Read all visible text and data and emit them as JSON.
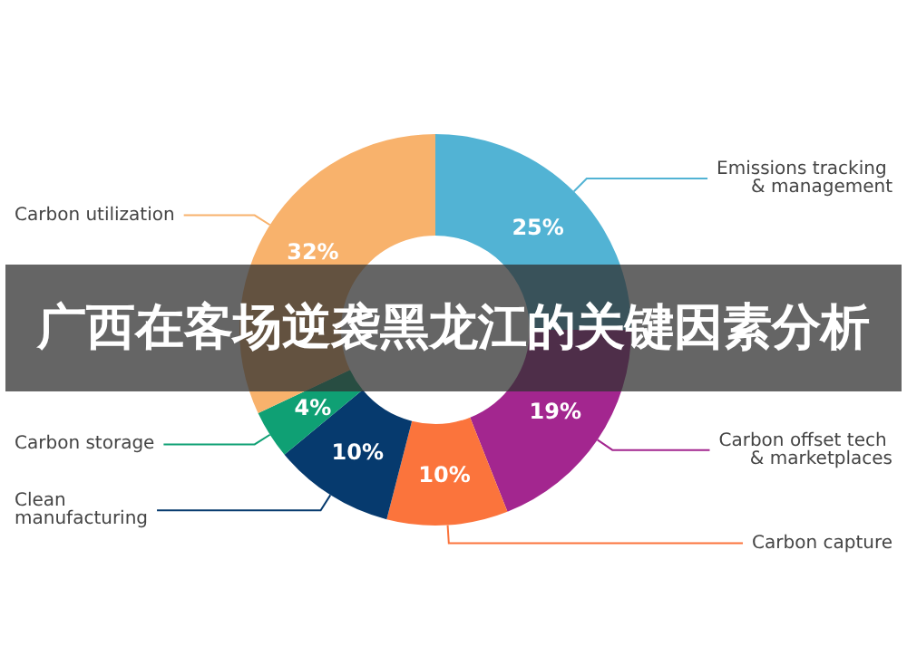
{
  "chart_data": {
    "type": "donut",
    "title": "广西在客场逆袭黑龙江的关键因素分析",
    "categories": [
      "Emissions tracking & management",
      "Carbon offset tech & marketplaces",
      "Carbon capture",
      "Clean manufacturing",
      "Carbon storage",
      "Carbon utilization"
    ],
    "values": [
      25,
      19,
      10,
      10,
      4,
      32
    ],
    "value_labels": [
      "25%",
      "19%",
      "10%",
      "10%",
      "4%",
      "32%"
    ],
    "colors": [
      "#52b3d4",
      "#a3268f",
      "#fb743c",
      "#063a6e",
      "#0fa074",
      "#f8b26c"
    ],
    "legend": false
  }
}
